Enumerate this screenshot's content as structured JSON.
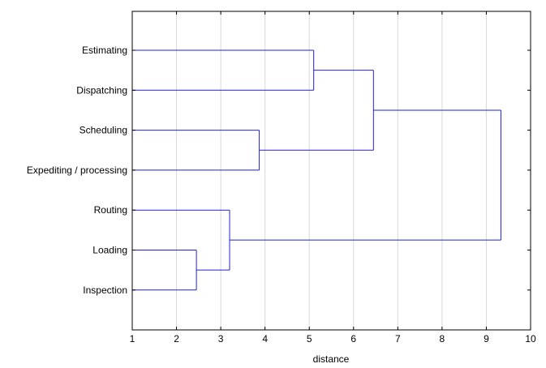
{
  "chart_data": {
    "type": "dendrogram",
    "xlabel": "distance",
    "xlim": [
      1,
      10
    ],
    "x_ticks": [
      "1",
      "2",
      "3",
      "4",
      "5",
      "6",
      "7",
      "8",
      "9",
      "10"
    ],
    "grid": true,
    "leaves": [
      "Estimating",
      "Dispatching",
      "Scheduling",
      "Expediting / processing",
      "Routing",
      "Loading",
      "Inspection"
    ],
    "merges": [
      {
        "members": [
          "Loading",
          "Inspection"
        ],
        "distance": 2.45
      },
      {
        "members": [
          "Routing",
          "Loading",
          "Inspection"
        ],
        "distance": 3.2
      },
      {
        "members": [
          "Scheduling",
          "Expediting / processing"
        ],
        "distance": 3.87
      },
      {
        "members": [
          "Estimating",
          "Dispatching"
        ],
        "distance": 5.1
      },
      {
        "members": [
          "Estimating",
          "Dispatching",
          "Scheduling",
          "Expediting / processing"
        ],
        "distance": 6.45
      },
      {
        "members": [
          "Estimating",
          "Dispatching",
          "Scheduling",
          "Expediting / processing",
          "Routing",
          "Loading",
          "Inspection"
        ],
        "distance": 9.33
      }
    ],
    "colors": {
      "link": "#2222cc",
      "grid": "#d9d9d9",
      "axis": "#000000"
    }
  }
}
